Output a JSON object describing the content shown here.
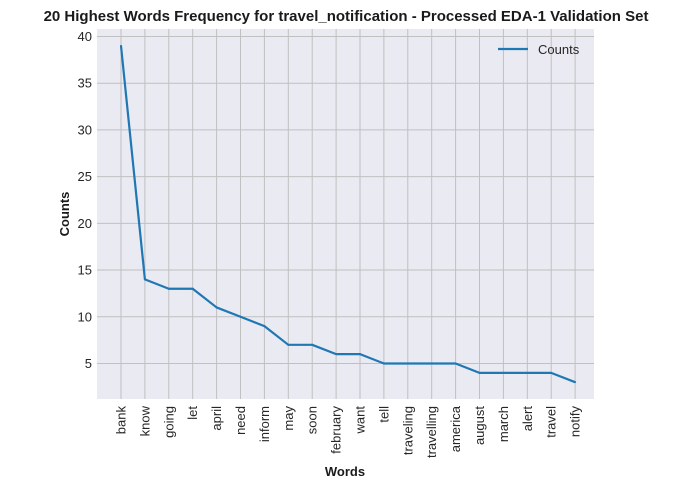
{
  "chart_data": {
    "type": "line",
    "title": "20 Highest Words Frequency for travel_notification - Processed EDA-1 Validation Set",
    "xlabel": "Words",
    "ylabel": "Counts",
    "categories": [
      "bank",
      "know",
      "going",
      "let",
      "april",
      "need",
      "inform",
      "may",
      "soon",
      "february",
      "want",
      "tell",
      "traveling",
      "travelling",
      "america",
      "august",
      "march",
      "alert",
      "travel",
      "notify"
    ],
    "series": [
      {
        "name": "Counts",
        "values": [
          39,
          14,
          13,
          13,
          11,
          10,
          9,
          7,
          7,
          6,
          6,
          5,
          5,
          5,
          5,
          4,
          4,
          4,
          4,
          3
        ],
        "color": "#1f77b4"
      }
    ],
    "yticks": [
      5,
      10,
      15,
      20,
      25,
      30,
      35,
      40
    ],
    "ylim": [
      1.2,
      40.8
    ],
    "grid": true,
    "legend_position": "top-right",
    "background_color": "#eaeaf2",
    "grid_color": "#c0c0c0"
  }
}
